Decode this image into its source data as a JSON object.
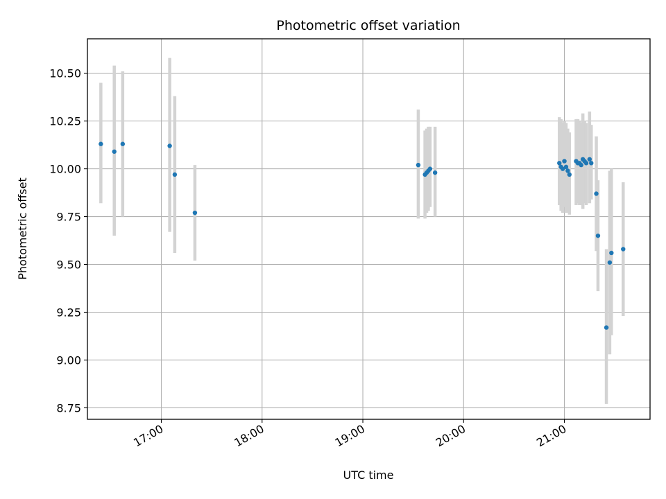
{
  "chart_data": {
    "type": "scatter",
    "title": "Photometric offset variation",
    "xlabel": "UTC time",
    "ylabel": "Photometric offset",
    "x_tick_labels": [
      "17:00",
      "18:00",
      "19:00",
      "20:00",
      "21:00"
    ],
    "x_ticks": [
      "17:00",
      "18:00",
      "19:00",
      "20:00",
      "21:00"
    ],
    "y_ticks": [
      8.75,
      9.0,
      9.25,
      9.5,
      9.75,
      10.0,
      10.25,
      10.5
    ],
    "y_tick_labels": [
      "8.75",
      "9.00",
      "9.25",
      "9.50",
      "9.75",
      "10.00",
      "10.25",
      "10.50"
    ],
    "xlim": [
      "16:16",
      "21:51"
    ],
    "ylim": [
      8.69,
      10.68
    ],
    "grid": true,
    "errorbar_color": "#d3d3d3",
    "point_color": "#1f77b4",
    "series": [
      {
        "points": [
          {
            "x": "16:24",
            "y": 10.13,
            "ylo": 9.82,
            "yhi": 10.45
          },
          {
            "x": "16:32",
            "y": 10.09,
            "ylo": 9.65,
            "yhi": 10.54
          },
          {
            "x": "16:37",
            "y": 10.13,
            "ylo": 9.75,
            "yhi": 10.51
          },
          {
            "x": "17:05",
            "y": 10.12,
            "ylo": 9.67,
            "yhi": 10.58
          },
          {
            "x": "17:08",
            "y": 9.97,
            "ylo": 9.56,
            "yhi": 10.38
          },
          {
            "x": "17:20",
            "y": 9.77,
            "ylo": 9.52,
            "yhi": 10.02
          },
          {
            "x": "19:33",
            "y": 10.02,
            "ylo": 9.74,
            "yhi": 10.31
          },
          {
            "x": "19:37",
            "y": 9.97,
            "ylo": 9.74,
            "yhi": 10.2
          },
          {
            "x": "19:38",
            "y": 9.98,
            "ylo": 9.77,
            "yhi": 10.21
          },
          {
            "x": "19:39",
            "y": 9.99,
            "ylo": 9.78,
            "yhi": 10.22
          },
          {
            "x": "19:40",
            "y": 10.0,
            "ylo": 9.8,
            "yhi": 10.22
          },
          {
            "x": "19:43",
            "y": 9.98,
            "ylo": 9.75,
            "yhi": 10.22
          },
          {
            "x": "20:57",
            "y": 10.03,
            "ylo": 9.81,
            "yhi": 10.27
          },
          {
            "x": "20:58",
            "y": 10.01,
            "ylo": 9.78,
            "yhi": 10.26
          },
          {
            "x": "20:59",
            "y": 10.0,
            "ylo": 9.77,
            "yhi": 10.24
          },
          {
            "x": "21:00",
            "y": 10.04,
            "ylo": 9.8,
            "yhi": 10.25
          },
          {
            "x": "21:01",
            "y": 10.01,
            "ylo": 9.77,
            "yhi": 10.24
          },
          {
            "x": "21:02",
            "y": 9.99,
            "ylo": 9.77,
            "yhi": 10.21
          },
          {
            "x": "21:03",
            "y": 9.97,
            "ylo": 9.76,
            "yhi": 10.19
          },
          {
            "x": "21:07",
            "y": 10.04,
            "ylo": 9.81,
            "yhi": 10.26
          },
          {
            "x": "21:08",
            "y": 10.03,
            "ylo": 9.82,
            "yhi": 10.26
          },
          {
            "x": "21:09",
            "y": 10.03,
            "ylo": 9.81,
            "yhi": 10.25
          },
          {
            "x": "21:10",
            "y": 10.02,
            "ylo": 9.81,
            "yhi": 10.24
          },
          {
            "x": "21:11",
            "y": 10.05,
            "ylo": 9.79,
            "yhi": 10.29
          },
          {
            "x": "21:12",
            "y": 10.04,
            "ylo": 9.82,
            "yhi": 10.25
          },
          {
            "x": "21:13",
            "y": 10.03,
            "ylo": 9.81,
            "yhi": 10.24
          },
          {
            "x": "21:15",
            "y": 10.05,
            "ylo": 9.82,
            "yhi": 10.3
          },
          {
            "x": "21:16",
            "y": 10.03,
            "ylo": 9.84,
            "yhi": 10.23
          },
          {
            "x": "21:19",
            "y": 9.87,
            "ylo": 9.57,
            "yhi": 10.17
          },
          {
            "x": "21:20",
            "y": 9.65,
            "ylo": 9.36,
            "yhi": 9.94
          },
          {
            "x": "21:25",
            "y": 9.17,
            "ylo": 8.77,
            "yhi": 9.58
          },
          {
            "x": "21:27",
            "y": 9.51,
            "ylo": 9.03,
            "yhi": 9.99
          },
          {
            "x": "21:28",
            "y": 9.56,
            "ylo": 9.13,
            "yhi": 10.0
          },
          {
            "x": "21:35",
            "y": 9.58,
            "ylo": 9.23,
            "yhi": 9.93
          }
        ]
      }
    ]
  }
}
